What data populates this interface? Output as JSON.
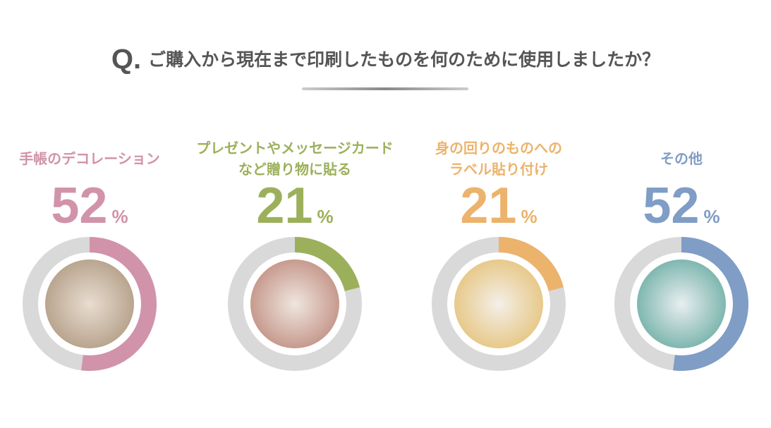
{
  "title": {
    "prefix": "Q.",
    "text": "ご購入から現在まで印刷したものを何のために使用しましたか？"
  },
  "chart_data": {
    "type": "pie",
    "donut": true,
    "unit": "%",
    "track_color": "#d9d9d9",
    "items": [
      {
        "label": "手帳のデコレーション",
        "value": 52,
        "color": "#d193aa",
        "photo": "notebook-decoration-photo"
      },
      {
        "label": "プレゼントやメッセージカード\nなど贈り物に貼る",
        "value": 21,
        "color": "#9cb05b",
        "photo": "gift-card-photo"
      },
      {
        "label": "身の回りのものへの\nラベル貼り付け",
        "value": 21,
        "color": "#ecb36c",
        "photo": "label-box-photo"
      },
      {
        "label": "その他",
        "value": 52,
        "color": "#7f9dc5",
        "photo": "other-photo"
      }
    ]
  }
}
